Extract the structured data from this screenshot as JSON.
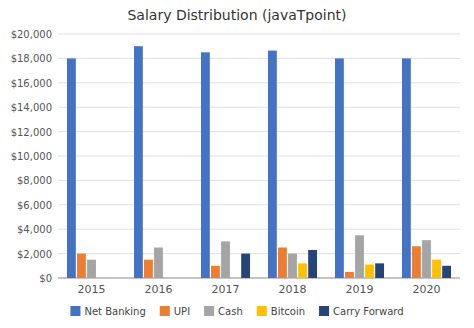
{
  "chart_data": {
    "type": "bar",
    "title": "Salary Distribution (javaTpoint)",
    "categories": [
      "2015",
      "2016",
      "2017",
      "2018",
      "2019",
      "2020"
    ],
    "series": [
      {
        "name": "Net Banking",
        "color": "#4472C4",
        "values": [
          18000,
          19000,
          18500,
          18640,
          18000,
          18000
        ]
      },
      {
        "name": "UPI",
        "color": "#ED7D31",
        "values": [
          2000,
          1500,
          1000,
          2500,
          500,
          2600
        ]
      },
      {
        "name": "Cash",
        "color": "#A5A5A5",
        "values": [
          1500,
          2500,
          3000,
          2000,
          3500,
          3100
        ]
      },
      {
        "name": "Bitcoin",
        "color": "#FFC000",
        "values": [
          0,
          0,
          0,
          1200,
          1100,
          1500
        ]
      },
      {
        "name": "Carry Forward",
        "color": "#264478",
        "values": [
          0,
          0,
          2000,
          2300,
          1200,
          1000
        ]
      }
    ],
    "ylim": [
      0,
      20000
    ],
    "yticks": [
      {
        "value": 0,
        "label": "$0"
      },
      {
        "value": 2000,
        "label": "$2,000"
      },
      {
        "value": 4000,
        "label": "$4,000"
      },
      {
        "value": 6000,
        "label": "$6,000"
      },
      {
        "value": 8000,
        "label": "$8,000"
      },
      {
        "value": 10000,
        "label": "$10,000"
      },
      {
        "value": 12000,
        "label": "$12,000"
      },
      {
        "value": 14000,
        "label": "$14,000"
      },
      {
        "value": 16000,
        "label": "$16,000"
      },
      {
        "value": 18000,
        "label": "$18,000"
      },
      {
        "value": 20000,
        "label": "$20,000"
      }
    ],
    "grid": true,
    "legend": "bottom"
  }
}
